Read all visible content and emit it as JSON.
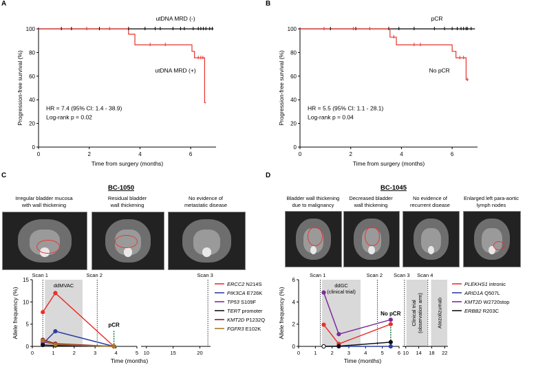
{
  "panels": {
    "A": {
      "label": "A",
      "type": "km",
      "ylabel": "Progression-free survival (%)",
      "xlabel": "Time from surgery (months)",
      "xticks": [
        0,
        2,
        4,
        6
      ],
      "yticks": [
        0,
        20,
        40,
        60,
        80,
        100
      ],
      "xlim": [
        0,
        7
      ],
      "ylim": [
        0,
        100
      ],
      "stat_lines": [
        "HR = 7.4 (95% CI: 1.4 - 38.9)",
        "Log-rank p = 0.02"
      ],
      "curve_labels": [
        {
          "text": "utDNA MRD (-)",
          "x": 5.4,
          "y": 107
        },
        {
          "text": "utDNA MRD (+)",
          "x": 5.4,
          "y": 63
        }
      ],
      "color_neg": "#000000",
      "color_pos": "#e8302a",
      "neg_curve": [
        [
          0,
          100
        ],
        [
          6.9,
          100
        ]
      ],
      "neg_censor": [
        0.9,
        1.3,
        2.4,
        3.55,
        4.2,
        4.6,
        4.8,
        5.3,
        5.6,
        5.75,
        6.1,
        6.3,
        6.4,
        6.5,
        6.6,
        6.75,
        6.85
      ],
      "pos_curve": [
        [
          0,
          100
        ],
        [
          3.55,
          100
        ],
        [
          3.55,
          95.5
        ],
        [
          3.8,
          95.5
        ],
        [
          3.8,
          86.5
        ],
        [
          6.05,
          86.5
        ],
        [
          6.05,
          81
        ],
        [
          6.15,
          81
        ],
        [
          6.15,
          75.5
        ],
        [
          6.55,
          75.5
        ],
        [
          6.55,
          37.5
        ],
        [
          6.6,
          37.5
        ]
      ],
      "pos_censor": [
        [
          1.9,
          100
        ],
        [
          2.8,
          100
        ],
        [
          4.4,
          86.5
        ],
        [
          5.0,
          86.5
        ],
        [
          6.3,
          75.5
        ],
        [
          6.4,
          75.5
        ],
        [
          6.48,
          75.5
        ]
      ]
    },
    "B": {
      "label": "B",
      "type": "km",
      "ylabel": "Progression-free survival (%)",
      "xlabel": "Time from surgery (months)",
      "xticks": [
        0,
        2,
        4,
        6
      ],
      "yticks": [
        0,
        20,
        40,
        60,
        80,
        100
      ],
      "xlim": [
        0,
        7
      ],
      "ylim": [
        0,
        100
      ],
      "stat_lines": [
        "HR = 5.5 (95% CI: 1.1 - 28.1)",
        "Log-rank p = 0.04"
      ],
      "curve_labels": [
        {
          "text": "pCR",
          "x": 5.4,
          "y": 107
        },
        {
          "text": "No pCR",
          "x": 5.5,
          "y": 63
        }
      ],
      "color_neg": "#000000",
      "color_pos": "#e8302a",
      "neg_curve": [
        [
          0,
          100
        ],
        [
          6.9,
          100
        ]
      ],
      "neg_censor": [
        1.2,
        2.2,
        3.5,
        3.9,
        4.5,
        5.3,
        5.7,
        6.0,
        6.2,
        6.35,
        6.45,
        6.55,
        6.6,
        6.75
      ],
      "pos_curve": [
        [
          0,
          100
        ],
        [
          3.55,
          100
        ],
        [
          3.55,
          93
        ],
        [
          3.8,
          93
        ],
        [
          3.8,
          86.5
        ],
        [
          6.0,
          86.5
        ],
        [
          6.0,
          81
        ],
        [
          6.15,
          81
        ],
        [
          6.15,
          75.5
        ],
        [
          6.55,
          75.5
        ],
        [
          6.55,
          57
        ],
        [
          6.65,
          57
        ]
      ],
      "pos_censor": [
        [
          0.95,
          100
        ],
        [
          2.1,
          100
        ],
        [
          2.75,
          100
        ],
        [
          3.7,
          93
        ],
        [
          4.5,
          86.5
        ],
        [
          4.75,
          86.5
        ],
        [
          6.3,
          75.5
        ],
        [
          6.45,
          75.5
        ],
        [
          6.6,
          57
        ]
      ]
    },
    "C": {
      "label": "C",
      "case_id": "BC-1050",
      "type": "line",
      "ct_captions": [
        "Irregular bladder mucosa\nwith wall thickening",
        "Residual bladder\nwall thickening",
        "No evidence of\nmetastatic disease"
      ],
      "ylabel": "Allele frequency (%)",
      "xlabel": "Time (months)",
      "ylim": [
        0,
        15
      ],
      "yticks": [
        0,
        5,
        10,
        15
      ],
      "xticks": [
        "0",
        "1",
        "2",
        "3",
        "4",
        "5",
        "10",
        "15",
        "20"
      ],
      "scans": [
        {
          "label": "Scan 1",
          "t": 0.5
        },
        {
          "label": "Scan 2",
          "t": 3.1
        },
        {
          "label": "Scan 3",
          "t": 21.5
        }
      ],
      "treatments": [
        {
          "label": "ddMVAC",
          "start": 0.6,
          "end": 2.4
        }
      ],
      "outcome": {
        "label": "pCR",
        "t": 3.9,
        "y": 3.5
      },
      "series": [
        {
          "gene": "ERCC2",
          "variant": "N214S",
          "color": "#e8302a",
          "points": [
            [
              0.5,
              7.7
            ],
            [
              1.1,
              12.0
            ],
            [
              3.9,
              0
            ]
          ],
          "empty_last": false
        },
        {
          "gene": "PIK3CA",
          "variant": "E726K",
          "color": "#2a3fa1",
          "points": [
            [
              0.5,
              0.6
            ],
            [
              1.1,
              3.4
            ],
            [
              3.9,
              0
            ]
          ],
          "empty_last": false
        },
        {
          "gene": "TP53",
          "variant": "S109F",
          "color": "#7b2a9c",
          "points": [
            [
              0.5,
              1.0
            ],
            [
              1.1,
              0.5
            ],
            [
              3.9,
              0
            ]
          ],
          "empty_last": false
        },
        {
          "gene": "TERT",
          "variant": "promoter",
          "color": "#111111",
          "points": [
            [
              0.5,
              0.3
            ],
            [
              1.1,
              0.2
            ],
            [
              3.9,
              0
            ]
          ],
          "empty_last": false
        },
        {
          "gene": "KMT2D",
          "variant": "P1232Q",
          "color": "#8b1a1a",
          "points": [
            [
              0.5,
              1.5
            ],
            [
              1.1,
              0.6
            ],
            [
              3.9,
              0
            ]
          ],
          "empty_last": false
        },
        {
          "gene": "FGFR3",
          "variant": "E102K",
          "color": "#a8782a",
          "points": [
            [
              0.5,
              1.3
            ],
            [
              1.1,
              0.4
            ],
            [
              3.9,
              0
            ]
          ],
          "empty_last": false
        }
      ]
    },
    "D": {
      "label": "D",
      "case_id": "BC-1045",
      "type": "line",
      "ct_captions": [
        "Bladder wall thickening\ndue to malignancy",
        "Decreased bladder\nwall thickening",
        "No evidence of\nrecurrent disease",
        "Enlarged left para-aortic\nlymph nodes"
      ],
      "ylabel": "Allele frequency (%)",
      "xlabel": "Time (months)",
      "ylim": [
        0,
        6
      ],
      "yticks": [
        0,
        2,
        4,
        6
      ],
      "xticks": [
        "0",
        "1",
        "2",
        "3",
        "4",
        "5",
        "6",
        "10",
        "14",
        "18",
        "22"
      ],
      "scans": [
        {
          "label": "Scan 1",
          "t": 1.3
        },
        {
          "label": "Scan 2",
          "t": 4.7
        },
        {
          "label": "Scan 3",
          "t": 9.6
        },
        {
          "label": "Scan 4",
          "t": 16.8
        }
      ],
      "treatments": [
        {
          "label": "ddGC\n(clinical trial)",
          "start": 1.4,
          "end": 3.7,
          "vertical": false
        },
        {
          "label": "Clinical trial\n(observation arm)",
          "start": 10.2,
          "end": 16.6,
          "vertical": true
        },
        {
          "label": "Atezolizumab",
          "start": 17.8,
          "end": 22.8,
          "vertical": true
        }
      ],
      "outcome": {
        "label": "No pCR",
        "t": 5.5,
        "y": 2.4
      },
      "series": [
        {
          "gene": "PLEKHS1",
          "variant": "intronic",
          "color": "#e8302a",
          "points": [
            [
              1.5,
              1.95
            ],
            [
              2.4,
              0.22
            ],
            [
              5.5,
              2.0
            ]
          ],
          "empty_first": false
        },
        {
          "gene": "ARID1A",
          "variant": "Q507L",
          "color": "#2a3fa1",
          "points": [
            [
              1.5,
              0
            ],
            [
              2.4,
              0
            ],
            [
              5.5,
              0
            ]
          ],
          "empty_first": true
        },
        {
          "gene": "KMT2D",
          "variant": "W2720stop",
          "color": "#7b2a9c",
          "points": [
            [
              1.5,
              4.85
            ],
            [
              2.4,
              1.1
            ],
            [
              5.5,
              2.4
            ]
          ],
          "empty_first": false
        },
        {
          "gene": "ERBB2",
          "variant": "R203C",
          "color": "#111111",
          "points": [
            [
              1.5,
              0
            ],
            [
              2.4,
              0.02
            ],
            [
              5.5,
              0.38
            ]
          ],
          "empty_first": true
        }
      ]
    }
  }
}
